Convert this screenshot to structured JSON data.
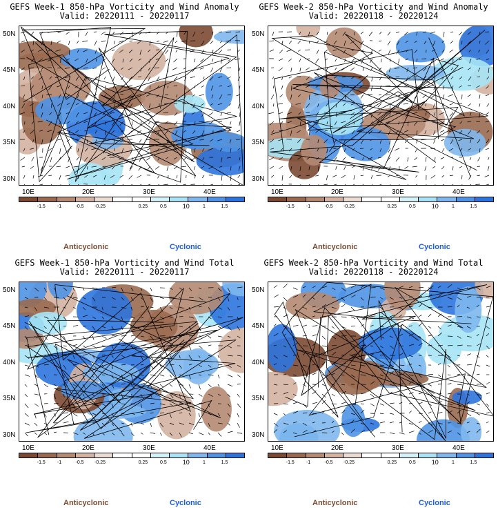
{
  "panels": [
    {
      "title": "GEFS Week-1 850-hPa Vorticity and Wind Anomaly",
      "valid": "Valid: 20220111 - 20220117",
      "seed": 11,
      "kind": "anomaly"
    },
    {
      "title": "GEFS Week-2 850-hPa Vorticity and Wind Anomaly",
      "valid": "Valid: 20220118 - 20220124",
      "seed": 23,
      "kind": "anomaly"
    },
    {
      "title": "GEFS Week-1 850-hPa Vorticity and Wind Total",
      "valid": "Valid: 20220111 - 20220117",
      "seed": 37,
      "kind": "total"
    },
    {
      "title": "GEFS Week-2 850-hPa Vorticity and Wind Total",
      "valid": "Valid: 20220118 - 20220124",
      "seed": 53,
      "kind": "total"
    }
  ],
  "lat_labels": [
    "50N",
    "45N",
    "40N",
    "35N",
    "30N"
  ],
  "lon_labels": [
    "10E",
    "20E",
    "30E",
    "40E"
  ],
  "colorbar": {
    "labels": [
      "-1.5",
      "-1",
      "-0.5",
      "-0.25",
      "0.25",
      "0.5",
      "1",
      "1.5"
    ],
    "scale_label": "10",
    "colors": [
      "#7b4a33",
      "#9a6a50",
      "#b58a73",
      "#d4b3a2",
      "#ecdcd2",
      "#ffffff",
      "#ffffff",
      "#d3f3fb",
      "#a7e4f5",
      "#7fb8ee",
      "#4f93e5",
      "#2e74dd"
    ]
  },
  "legend": {
    "anticyclonic": "Anticyclonic",
    "cyclonic": "Cyclonic"
  }
}
